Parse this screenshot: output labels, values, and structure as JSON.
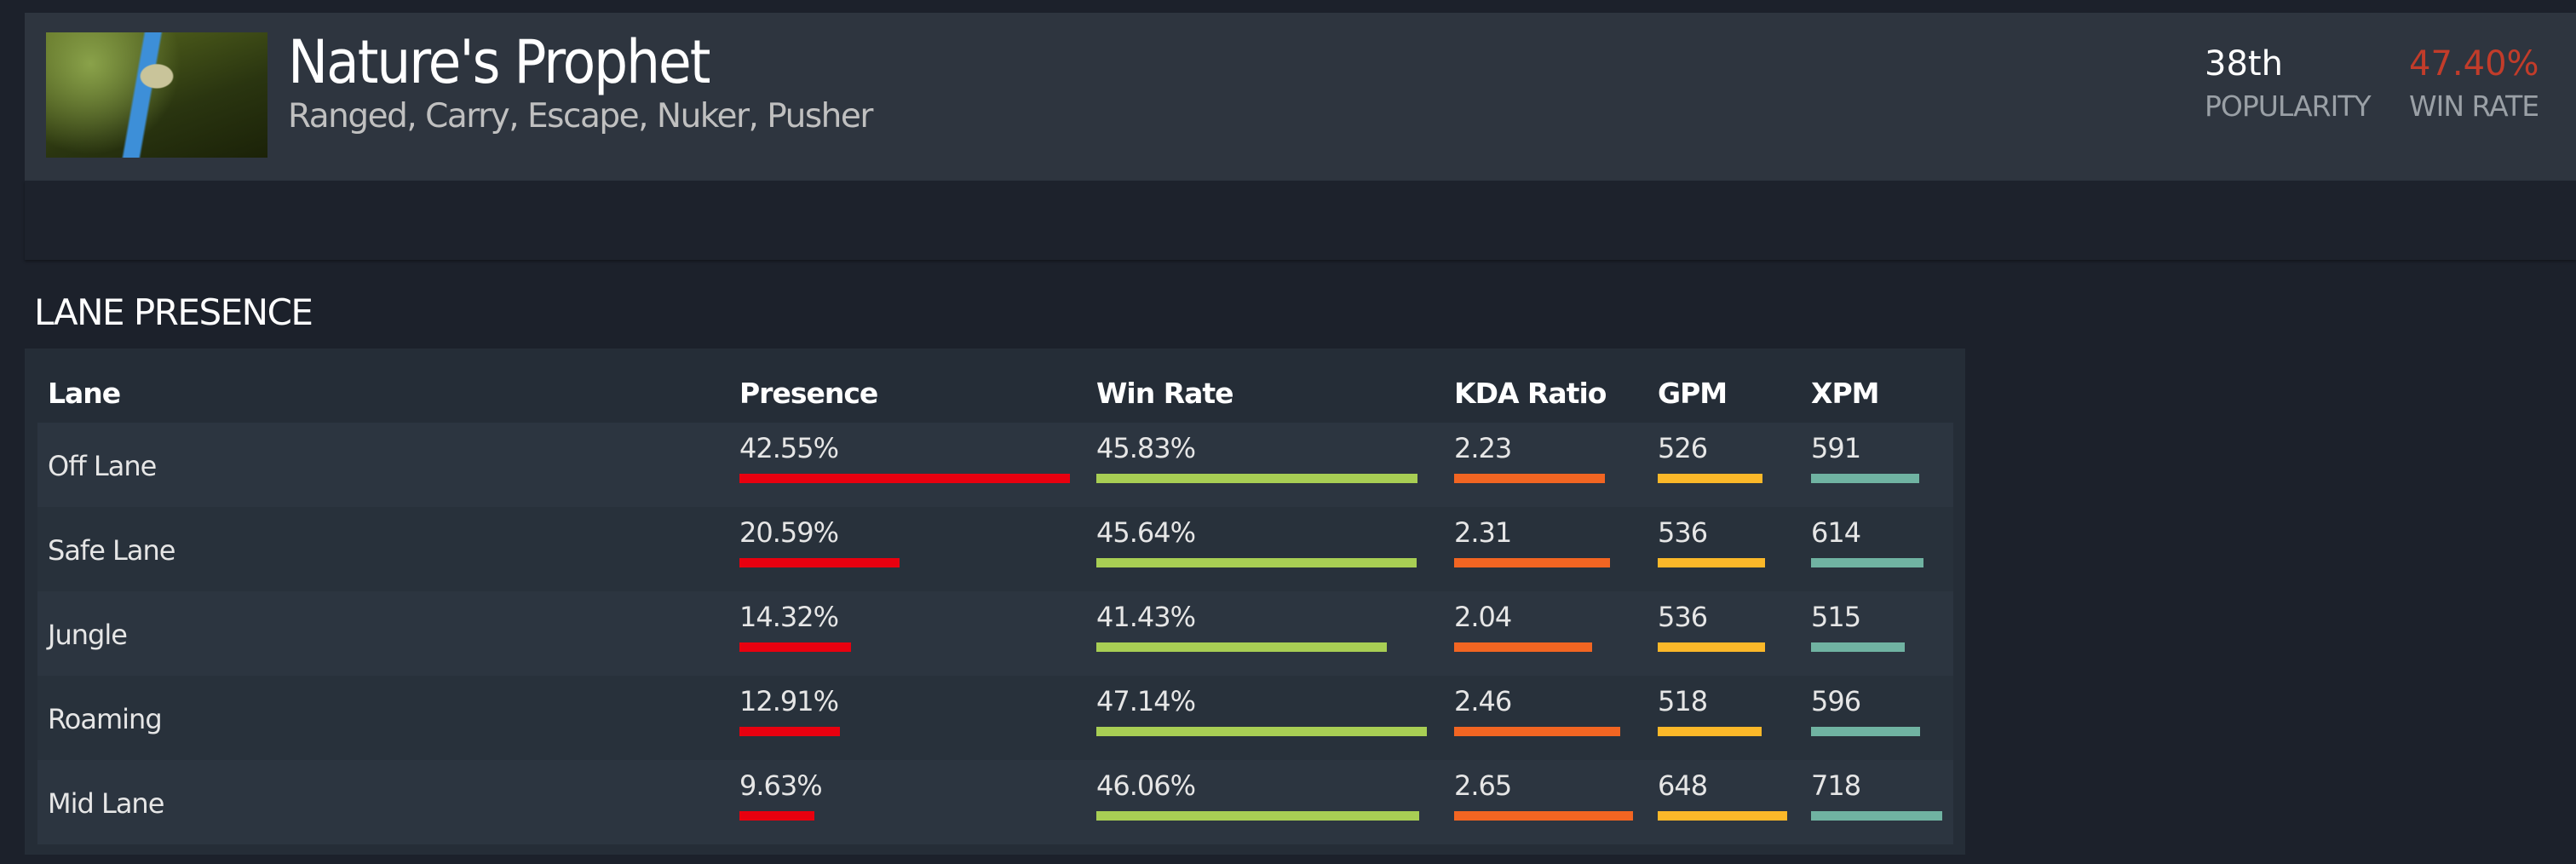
{
  "hero": {
    "name": "Nature's Prophet",
    "roles": "Ranged, Carry, Escape, Nuker, Pusher",
    "portrait_icon": "hero-portrait",
    "popularity": {
      "value": "38th",
      "label": "POPULARITY"
    },
    "win_rate": {
      "value": "47.40%",
      "label": "WIN RATE",
      "color": "#c23c2a"
    }
  },
  "lane_presence": {
    "title": "LANE PRESENCE",
    "columns": [
      "Lane",
      "Presence",
      "Win Rate",
      "KDA Ratio",
      "GPM",
      "XPM"
    ],
    "bar_colors": {
      "presence": "#e8000f",
      "win_rate": "#a8ce54",
      "kda": "#f26522",
      "gpm": "#fbb829",
      "xpm": "#70b3a2"
    },
    "rows": [
      {
        "lane": "Off Lane",
        "presence": "42.55%",
        "win_rate": "45.83%",
        "kda": "2.23",
        "gpm": "526",
        "xpm": "591"
      },
      {
        "lane": "Safe Lane",
        "presence": "20.59%",
        "win_rate": "45.64%",
        "kda": "2.31",
        "gpm": "536",
        "xpm": "614"
      },
      {
        "lane": "Jungle",
        "presence": "14.32%",
        "win_rate": "41.43%",
        "kda": "2.04",
        "gpm": "536",
        "xpm": "515"
      },
      {
        "lane": "Roaming",
        "presence": "12.91%",
        "win_rate": "47.14%",
        "kda": "2.46",
        "gpm": "518",
        "xpm": "596"
      },
      {
        "lane": "Mid Lane",
        "presence": "9.63%",
        "win_rate": "46.06%",
        "kda": "2.65",
        "gpm": "648",
        "xpm": "718"
      }
    ]
  }
}
